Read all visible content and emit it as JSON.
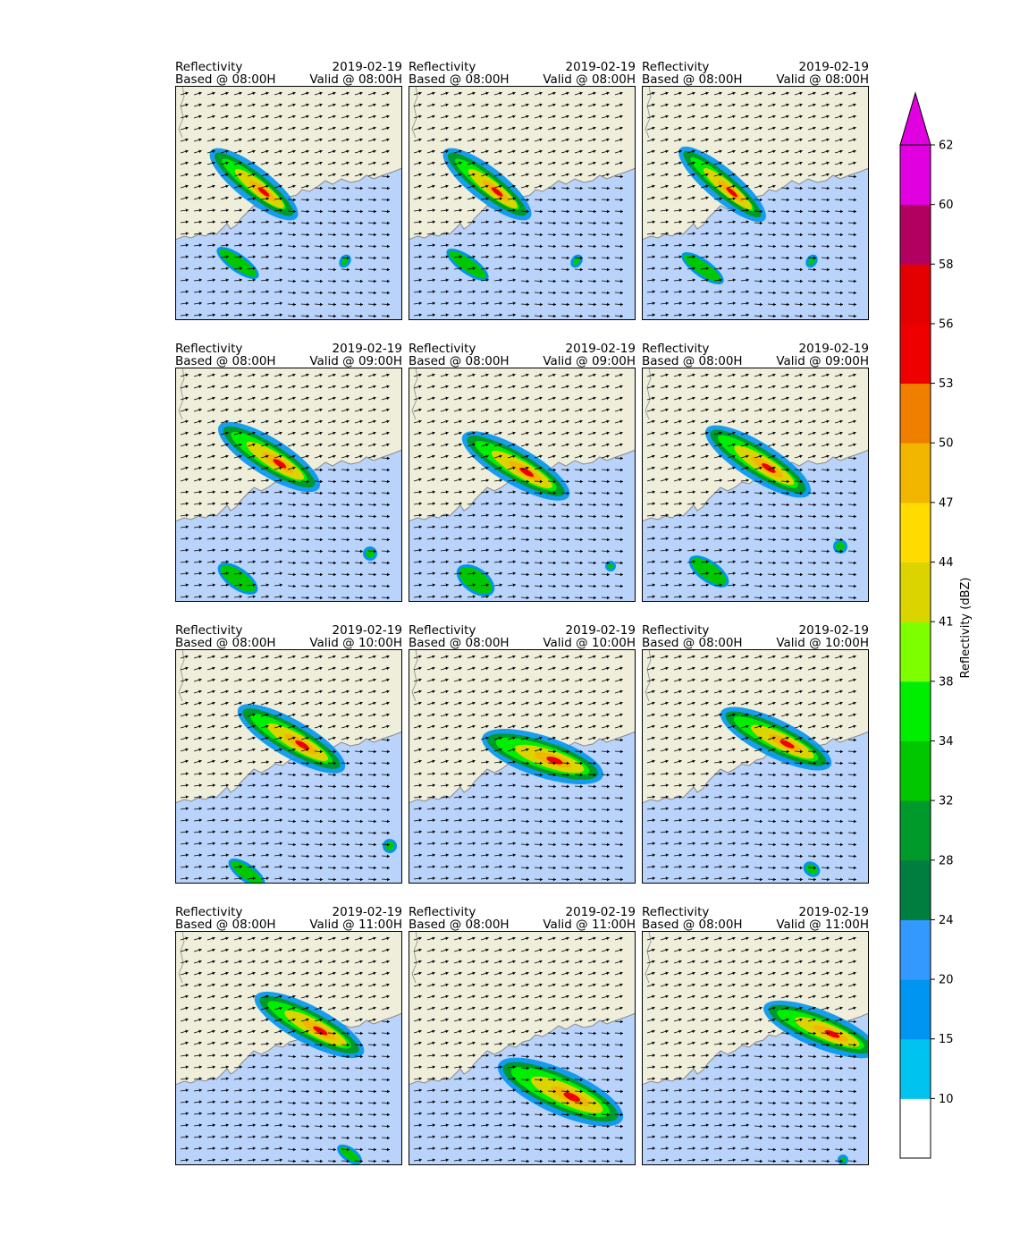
{
  "colorbar": {
    "label": "Reflectivity (dBZ)",
    "ticks": [
      "10",
      "15",
      "20",
      "24",
      "28",
      "32",
      "34",
      "38",
      "41",
      "44",
      "47",
      "50",
      "53",
      "56",
      "58",
      "60",
      "62"
    ],
    "colors": [
      "#ffffff",
      "#00c3f0",
      "#0095f0",
      "#3399ff",
      "#007e3f",
      "#009a2b",
      "#00c700",
      "#00ee00",
      "#7dff00",
      "#dcd400",
      "#ffdb00",
      "#f2b500",
      "#f07f00",
      "#ee0000",
      "#e40000",
      "#b20060",
      "#e000e0"
    ]
  },
  "map_colors": {
    "land": "#efeedb",
    "sea": "#b9d3fa",
    "coast": "#8a8a8a"
  },
  "panels": [
    {
      "title": "Reflectivity",
      "date": "2019-02-19",
      "based": "Based @ 08:00H",
      "valid": "Valid @ 08:00H"
    },
    {
      "title": "Reflectivity",
      "date": "2019-02-19",
      "based": "Based @ 08:00H",
      "valid": "Valid @ 08:00H"
    },
    {
      "title": "Reflectivity",
      "date": "2019-02-19",
      "based": "Based @ 08:00H",
      "valid": "Valid @ 08:00H"
    },
    {
      "title": "Reflectivity",
      "date": "2019-02-19",
      "based": "Based @ 08:00H",
      "valid": "Valid @ 09:00H"
    },
    {
      "title": "Reflectivity",
      "date": "2019-02-19",
      "based": "Based @ 08:00H",
      "valid": "Valid @ 09:00H"
    },
    {
      "title": "Reflectivity",
      "date": "2019-02-19",
      "based": "Based @ 08:00H",
      "valid": "Valid @ 09:00H"
    },
    {
      "title": "Reflectivity",
      "date": "2019-02-19",
      "based": "Based @ 08:00H",
      "valid": "Valid @ 10:00H"
    },
    {
      "title": "Reflectivity",
      "date": "2019-02-19",
      "based": "Based @ 08:00H",
      "valid": "Valid @ 10:00H"
    },
    {
      "title": "Reflectivity",
      "date": "2019-02-19",
      "based": "Based @ 08:00H",
      "valid": "Valid @ 10:00H"
    },
    {
      "title": "Reflectivity",
      "date": "2019-02-19",
      "based": "Based @ 08:00H",
      "valid": "Valid @ 11:00H"
    },
    {
      "title": "Reflectivity",
      "date": "2019-02-19",
      "based": "Based @ 08:00H",
      "valid": "Valid @ 11:00H"
    },
    {
      "title": "Reflectivity",
      "date": "2019-02-19",
      "based": "Based @ 08:00H",
      "valid": "Valid @ 11:00H"
    }
  ]
}
